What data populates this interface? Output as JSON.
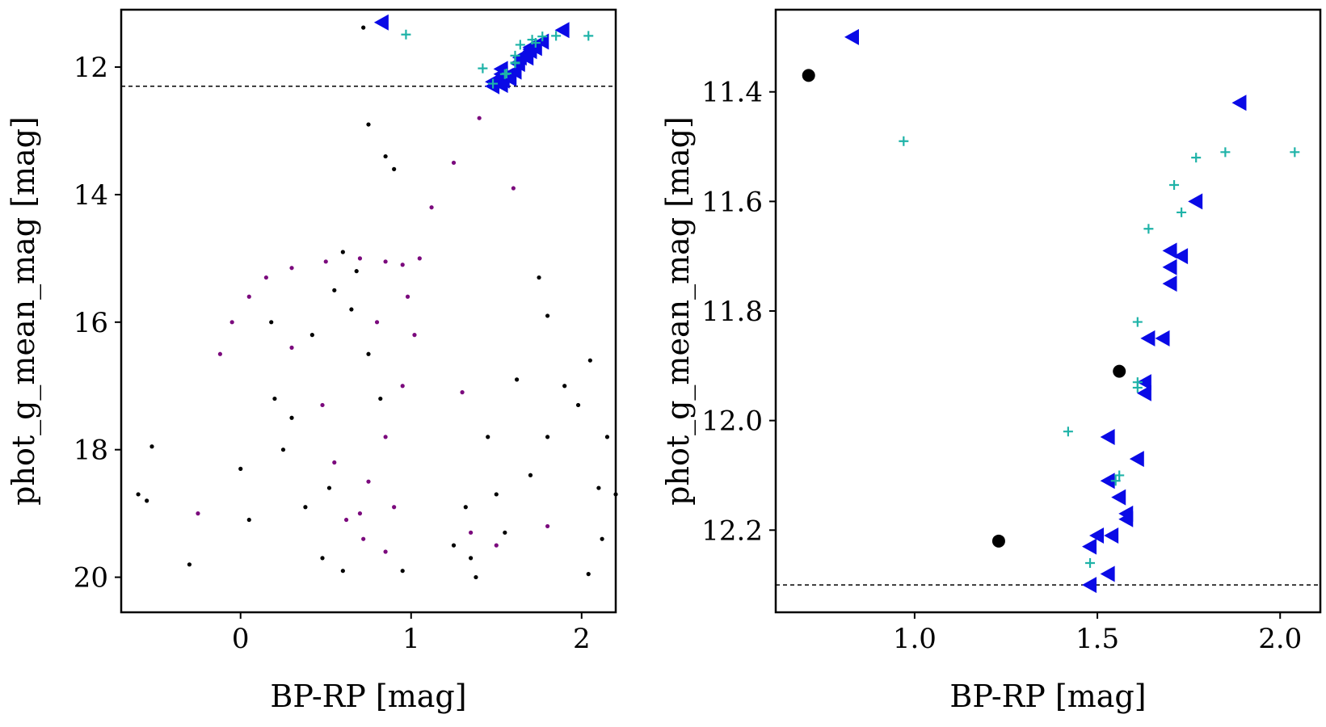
{
  "figure": {
    "colors": {
      "black": "#000000",
      "purple": "#7b0a7d",
      "blue": "#0a0ae6",
      "teal": "#1fb3a8"
    }
  },
  "chart_data": [
    {
      "type": "scatter",
      "xlabel": "BP-RP [mag]",
      "ylabel": "phot_g_mean_mag [mag]",
      "xlim": [
        -0.7,
        2.2
      ],
      "ylim": [
        20.55,
        11.1
      ],
      "y_inverted": true,
      "xticks": [
        0,
        1,
        2
      ],
      "yticks": [
        12,
        14,
        16,
        18,
        20
      ],
      "hline": 12.3,
      "grid": false,
      "series": [
        {
          "marker": "dot",
          "color": "#000000",
          "points": [
            [
              0.72,
              11.38
            ],
            [
              -0.6,
              18.7
            ],
            [
              -0.52,
              17.95
            ],
            [
              -0.3,
              19.8
            ],
            [
              0.0,
              18.3
            ],
            [
              0.05,
              19.1
            ],
            [
              -0.55,
              18.8
            ],
            [
              0.2,
              17.2
            ],
            [
              0.3,
              17.5
            ],
            [
              0.42,
              16.2
            ],
            [
              0.18,
              16.0
            ],
            [
              0.55,
              15.5
            ],
            [
              0.6,
              14.9
            ],
            [
              0.75,
              12.9
            ],
            [
              0.85,
              13.4
            ],
            [
              0.9,
              13.6
            ],
            [
              1.25,
              19.5
            ],
            [
              1.35,
              19.7
            ],
            [
              1.5,
              18.7
            ],
            [
              1.55,
              19.3
            ],
            [
              1.7,
              18.4
            ],
            [
              1.8,
              17.8
            ],
            [
              1.9,
              17.0
            ],
            [
              1.98,
              17.3
            ],
            [
              2.05,
              16.6
            ],
            [
              2.1,
              18.6
            ],
            [
              2.15,
              17.8
            ],
            [
              2.2,
              18.7
            ],
            [
              2.12,
              19.4
            ],
            [
              2.04,
              19.95
            ],
            [
              1.75,
              15.3
            ],
            [
              1.8,
              15.9
            ],
            [
              1.62,
              16.9
            ],
            [
              1.45,
              17.8
            ],
            [
              1.32,
              18.9
            ],
            [
              1.38,
              20.0
            ],
            [
              0.95,
              19.9
            ],
            [
              0.6,
              19.9
            ],
            [
              0.48,
              19.7
            ],
            [
              0.38,
              18.9
            ],
            [
              0.25,
              18.0
            ],
            [
              0.52,
              18.6
            ],
            [
              0.68,
              15.2
            ],
            [
              0.65,
              15.8
            ],
            [
              0.75,
              16.5
            ],
            [
              0.82,
              17.2
            ]
          ]
        },
        {
          "marker": "dot",
          "color": "#7b0a7d",
          "points": [
            [
              -0.12,
              16.5
            ],
            [
              -0.05,
              16.0
            ],
            [
              0.05,
              15.6
            ],
            [
              0.15,
              15.3
            ],
            [
              0.3,
              15.15
            ],
            [
              0.5,
              15.05
            ],
            [
              0.7,
              15.0
            ],
            [
              0.85,
              15.05
            ],
            [
              0.95,
              15.1
            ],
            [
              0.98,
              15.6
            ],
            [
              1.02,
              16.2
            ],
            [
              0.95,
              17.0
            ],
            [
              0.85,
              17.8
            ],
            [
              0.75,
              18.5
            ],
            [
              0.7,
              19.0
            ],
            [
              0.72,
              19.4
            ],
            [
              0.85,
              19.6
            ],
            [
              1.05,
              15.0
            ],
            [
              1.12,
              14.2
            ],
            [
              1.25,
              13.5
            ],
            [
              1.4,
              12.8
            ],
            [
              1.55,
              12.3
            ],
            [
              1.6,
              13.9
            ],
            [
              1.3,
              17.1
            ],
            [
              1.5,
              19.5
            ],
            [
              1.35,
              19.3
            ],
            [
              1.8,
              19.2
            ],
            [
              0.3,
              16.4
            ],
            [
              -0.25,
              19.0
            ],
            [
              0.48,
              17.3
            ],
            [
              0.55,
              18.2
            ],
            [
              0.62,
              19.1
            ],
            [
              0.9,
              18.9
            ],
            [
              0.8,
              16.0
            ]
          ]
        },
        {
          "marker": "triangle-left",
          "color": "#0a0ae6",
          "points": [
            [
              0.83,
              11.3
            ],
            [
              1.89,
              11.42
            ],
            [
              1.77,
              11.6
            ],
            [
              1.7,
              11.69
            ],
            [
              1.73,
              11.7
            ],
            [
              1.7,
              11.72
            ],
            [
              1.7,
              11.75
            ],
            [
              1.64,
              11.85
            ],
            [
              1.68,
              11.85
            ],
            [
              1.63,
              11.93
            ],
            [
              1.63,
              11.95
            ],
            [
              1.53,
              12.03
            ],
            [
              1.61,
              12.07
            ],
            [
              1.53,
              12.11
            ],
            [
              1.56,
              12.14
            ],
            [
              1.58,
              12.17
            ],
            [
              1.58,
              12.18
            ],
            [
              1.5,
              12.21
            ],
            [
              1.54,
              12.21
            ],
            [
              1.48,
              12.23
            ],
            [
              1.53,
              12.28
            ],
            [
              1.48,
              12.3
            ]
          ]
        },
        {
          "marker": "plus",
          "color": "#1fb3a8",
          "points": [
            [
              0.97,
              11.49
            ],
            [
              1.42,
              12.02
            ],
            [
              1.85,
              11.51
            ],
            [
              2.04,
              11.51
            ],
            [
              1.77,
              11.52
            ],
            [
              1.71,
              11.57
            ],
            [
              1.73,
              11.62
            ],
            [
              1.64,
              11.65
            ],
            [
              1.61,
              11.82
            ],
            [
              1.61,
              11.94
            ],
            [
              1.61,
              11.93
            ],
            [
              1.56,
              12.1
            ],
            [
              1.55,
              12.11
            ],
            [
              1.48,
              12.26
            ]
          ]
        }
      ]
    },
    {
      "type": "scatter",
      "xlabel": "BP-RP [mag]",
      "ylabel": "phot_g_mean_mag [mag]",
      "xlim": [
        0.62,
        2.11
      ],
      "ylim": [
        12.35,
        11.25
      ],
      "y_inverted": true,
      "xticks": [
        1.0,
        1.5,
        2.0
      ],
      "ytick_labels": [
        "11.4",
        "11.6",
        "11.8",
        "12.0",
        "12.2"
      ],
      "yticks": [
        11.4,
        11.6,
        11.8,
        12.0,
        12.2
      ],
      "hline": 12.3,
      "grid": false,
      "series": [
        {
          "marker": "dot",
          "color": "#000000",
          "points": [
            [
              0.71,
              11.37
            ],
            [
              1.56,
              11.91
            ],
            [
              1.23,
              12.22
            ]
          ]
        },
        {
          "marker": "triangle-left",
          "color": "#0a0ae6",
          "points": [
            [
              0.83,
              11.3
            ],
            [
              1.89,
              11.42
            ],
            [
              1.77,
              11.6
            ],
            [
              1.7,
              11.69
            ],
            [
              1.73,
              11.7
            ],
            [
              1.7,
              11.72
            ],
            [
              1.7,
              11.75
            ],
            [
              1.64,
              11.85
            ],
            [
              1.68,
              11.85
            ],
            [
              1.63,
              11.93
            ],
            [
              1.63,
              11.95
            ],
            [
              1.53,
              12.03
            ],
            [
              1.61,
              12.07
            ],
            [
              1.53,
              12.11
            ],
            [
              1.56,
              12.14
            ],
            [
              1.58,
              12.17
            ],
            [
              1.58,
              12.18
            ],
            [
              1.5,
              12.21
            ],
            [
              1.54,
              12.21
            ],
            [
              1.48,
              12.23
            ],
            [
              1.53,
              12.28
            ],
            [
              1.48,
              12.3
            ]
          ]
        },
        {
          "marker": "plus",
          "color": "#1fb3a8",
          "points": [
            [
              0.97,
              11.49
            ],
            [
              1.42,
              12.02
            ],
            [
              1.85,
              11.51
            ],
            [
              2.04,
              11.51
            ],
            [
              1.77,
              11.52
            ],
            [
              1.71,
              11.57
            ],
            [
              1.73,
              11.62
            ],
            [
              1.64,
              11.65
            ],
            [
              1.61,
              11.82
            ],
            [
              1.61,
              11.94
            ],
            [
              1.61,
              11.93
            ],
            [
              1.56,
              12.1
            ],
            [
              1.55,
              12.11
            ],
            [
              1.48,
              12.26
            ]
          ]
        }
      ]
    }
  ]
}
